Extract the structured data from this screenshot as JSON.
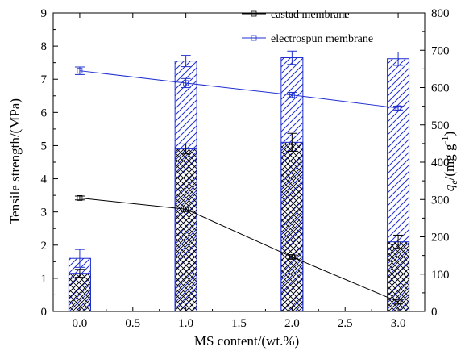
{
  "chart_data": {
    "type": "bar",
    "xlabel": "MS content/(wt.%)",
    "ylabel_left": "Tensile strength/(MPa)",
    "ylabel_right": {
      "base": "q",
      "subscript": "e",
      "unit_prefix": "/(mg g",
      "superscript": "-1",
      "unit_suffix": ")"
    },
    "xlim": [
      -0.25,
      3.25
    ],
    "xticks": [
      "0.0",
      "0.5",
      "1.0",
      "1.5",
      "2.0",
      "2.5",
      "3.0"
    ],
    "xtick_values": [
      0,
      0.5,
      1,
      1.5,
      2,
      2.5,
      3
    ],
    "ylim_left": [
      0,
      9
    ],
    "yticks_left": [
      "0",
      "1",
      "2",
      "3",
      "4",
      "5",
      "6",
      "7",
      "8",
      "9"
    ],
    "ylim_right": [
      0,
      800
    ],
    "yticks_right": [
      "0",
      "100",
      "200",
      "300",
      "400",
      "500",
      "600",
      "700",
      "800"
    ],
    "bars": [
      {
        "name": "electrospun membrane",
        "axis": "left",
        "x": [
          0,
          1,
          2,
          3
        ],
        "values": [
          1.6,
          7.55,
          7.65,
          7.62
        ],
        "errors": [
          0.27,
          0.17,
          0.2,
          0.2
        ],
        "hatch": "diagonal"
      },
      {
        "name": "casted membrane",
        "axis": "left",
        "x": [
          0,
          1,
          2,
          3
        ],
        "values": [
          1.15,
          4.9,
          5.1,
          2.1
        ],
        "errors": [
          0.12,
          0.15,
          0.27,
          0.2
        ],
        "hatch": "crosshatch"
      }
    ],
    "lines": [
      {
        "name": "casted membrane",
        "axis": "right",
        "x": [
          0,
          1,
          2,
          3
        ],
        "values": [
          304,
          274,
          146,
          26
        ],
        "errors": [
          3,
          4,
          3,
          4
        ],
        "color": "#000000"
      },
      {
        "name": "electrospun membrane",
        "axis": "right",
        "x": [
          0,
          1,
          2,
          3
        ],
        "values": [
          645,
          612,
          580,
          545
        ],
        "errors": [
          8,
          10,
          5,
          3
        ],
        "color": "#1f2fd0"
      }
    ],
    "legend": {
      "placement": "top-right",
      "entries": [
        {
          "label": "casted membrane",
          "color": "#000000"
        },
        {
          "label": "electrospun membrane",
          "color": "#1f2fd0"
        }
      ]
    },
    "grid": false,
    "colors": {
      "blue": "#1f2fd0",
      "black": "#000000"
    }
  }
}
